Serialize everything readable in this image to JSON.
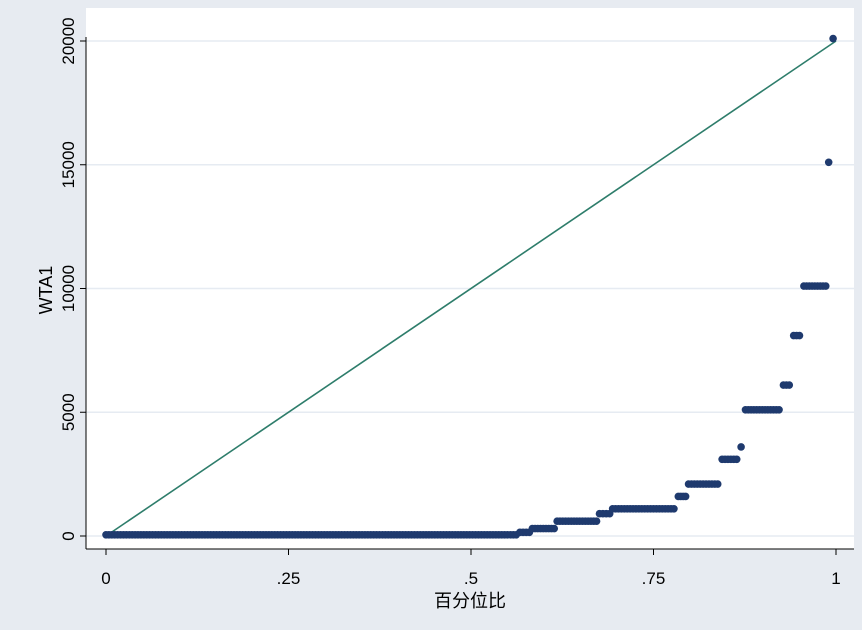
{
  "chart_data": {
    "type": "scatter",
    "title": "",
    "xlabel": "百分位比",
    "ylabel": "WTA1",
    "xlim": [
      0,
      1
    ],
    "ylim": [
      0,
      20000
    ],
    "x_ticks": [
      0,
      0.25,
      0.5,
      0.75,
      1
    ],
    "x_tick_labels": [
      "0",
      ".25",
      ".5",
      ".75",
      "1"
    ],
    "y_ticks": [
      0,
      5000,
      10000,
      15000,
      20000
    ],
    "y_tick_labels": [
      "0",
      "5000",
      "10000",
      "15000",
      "20000"
    ],
    "grid": "horizontal",
    "legend": "none",
    "reference_line": {
      "from": [
        0,
        0
      ],
      "to": [
        1,
        20000
      ],
      "color": "#2e7d6b"
    },
    "marker_color": "#1f3a6e",
    "segments": [
      {
        "x_start": 0.0,
        "x_end": 0.562,
        "y": 50
      },
      {
        "x_start": 0.567,
        "x_end": 0.58,
        "y": 150
      },
      {
        "x_start": 0.584,
        "x_end": 0.614,
        "y": 300
      },
      {
        "x_start": 0.618,
        "x_end": 0.672,
        "y": 600
      },
      {
        "x_start": 0.676,
        "x_end": 0.69,
        "y": 900
      },
      {
        "x_start": 0.694,
        "x_end": 0.778,
        "y": 1100
      },
      {
        "x_start": 0.784,
        "x_end": 0.794,
        "y": 1600
      },
      {
        "x_start": 0.798,
        "x_end": 0.838,
        "y": 2100
      },
      {
        "x_start": 0.844,
        "x_end": 0.864,
        "y": 3100
      },
      {
        "x_start": 0.87,
        "x_end": 0.87,
        "y": 3600
      },
      {
        "x_start": 0.876,
        "x_end": 0.922,
        "y": 5100
      },
      {
        "x_start": 0.928,
        "x_end": 0.936,
        "y": 6100
      },
      {
        "x_start": 0.942,
        "x_end": 0.95,
        "y": 8100
      },
      {
        "x_start": 0.956,
        "x_end": 0.986,
        "y": 10100
      },
      {
        "x_start": 0.99,
        "x_end": 0.99,
        "y": 15100
      },
      {
        "x_start": 0.996,
        "x_end": 0.996,
        "y": 20100
      }
    ],
    "point_step": 0.004
  }
}
